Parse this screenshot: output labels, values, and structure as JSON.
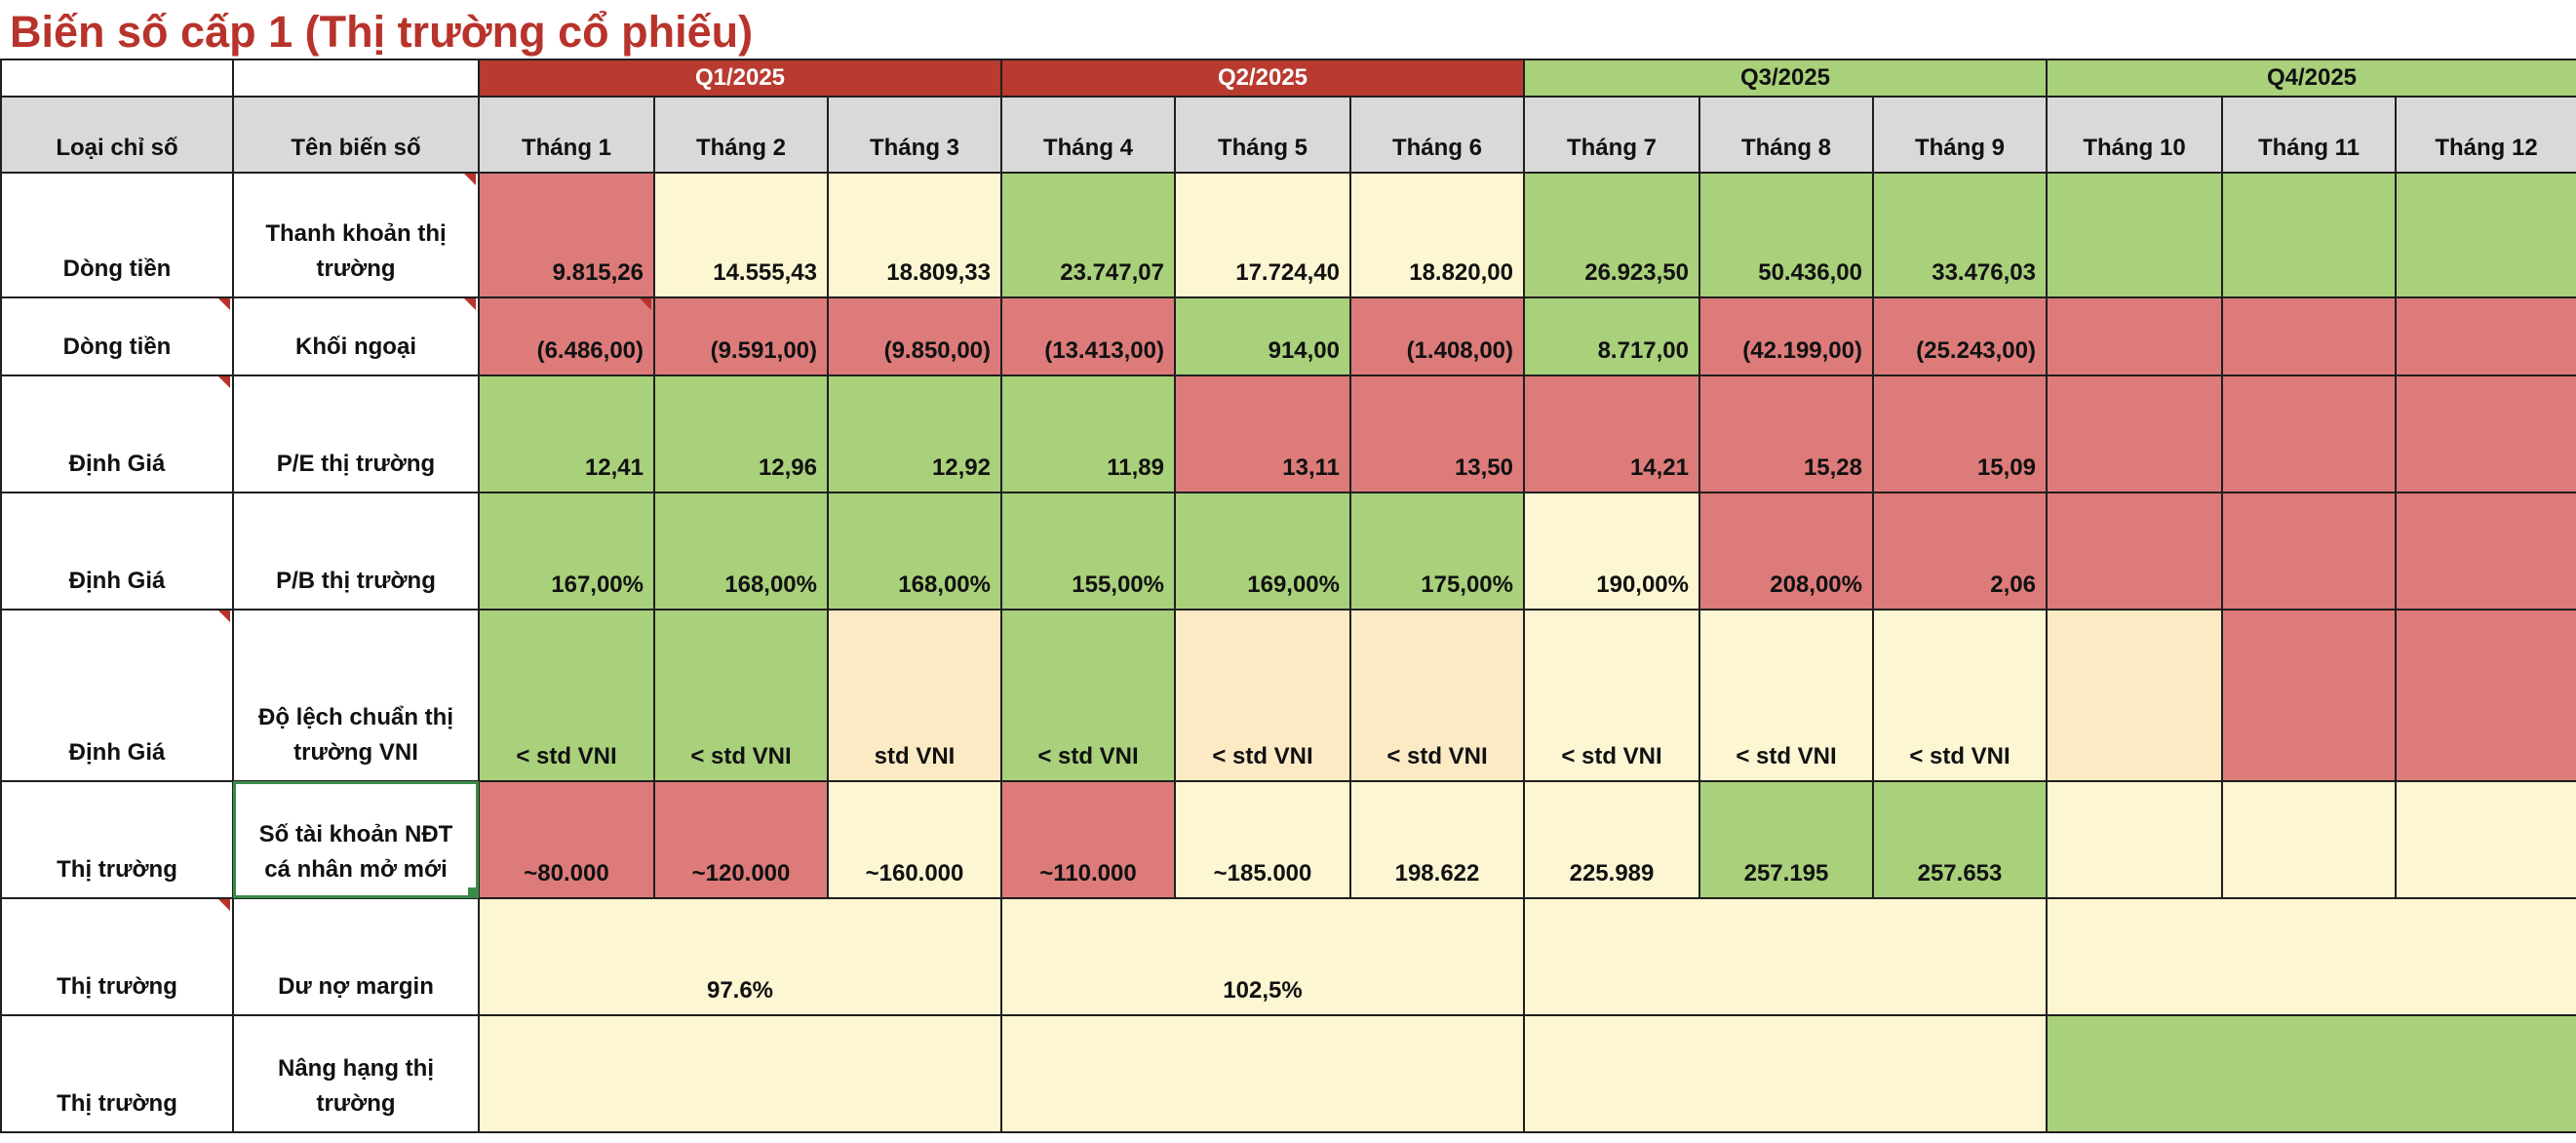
{
  "title": "Biến số cấp 1 (Thị trường cổ phiếu)",
  "quarters": [
    "Q1/2025",
    "Q2/2025",
    "Q3/2025",
    "Q4/2025"
  ],
  "colors": {
    "red": "#dc7b7a",
    "green": "#a9d07a",
    "cream": "#fdf6d3",
    "tan": "#fbeac4",
    "header_red": "#b93a2f",
    "title": "#b8332b"
  },
  "headers": {
    "type": "Loại chỉ số",
    "name": "Tên biến số",
    "months": [
      "Tháng 1",
      "Tháng 2",
      "Tháng 3",
      "Tháng 4",
      "Tháng 5",
      "Tháng 6",
      "Tháng 7",
      "Tháng 8",
      "Tháng 9",
      "Tháng 10",
      "Tháng 11",
      "Tháng 12"
    ]
  },
  "rows": [
    {
      "type": "Dòng tiền",
      "name": "Thanh khoản thị trường",
      "values": [
        "9.815,26",
        "14.555,43",
        "18.809,33",
        "23.747,07",
        "17.724,40",
        "18.820,00",
        "26.923,50",
        "50.436,00",
        "33.476,03",
        "",
        "",
        ""
      ],
      "colors": [
        "red",
        "cream",
        "cream",
        "green",
        "cream",
        "cream",
        "green",
        "green",
        "green",
        "green",
        "green",
        "green"
      ]
    },
    {
      "type": "Dòng tiền",
      "name": "Khối ngoại",
      "values": [
        "(6.486,00)",
        "(9.591,00)",
        "(9.850,00)",
        "(13.413,00)",
        "914,00",
        "(1.408,00)",
        "8.717,00",
        "(42.199,00)",
        "(25.243,00)",
        "",
        "",
        ""
      ],
      "colors": [
        "red",
        "red",
        "red",
        "red",
        "green",
        "red",
        "green",
        "red",
        "red",
        "red",
        "red",
        "red"
      ]
    },
    {
      "type": "Định Giá",
      "name": "P/E thị trường",
      "values": [
        "12,41",
        "12,96",
        "12,92",
        "11,89",
        "13,11",
        "13,50",
        "14,21",
        "15,28",
        "15,09",
        "",
        "",
        ""
      ],
      "colors": [
        "green",
        "green",
        "green",
        "green",
        "red",
        "red",
        "red",
        "red",
        "red",
        "red",
        "red",
        "red"
      ]
    },
    {
      "type": "Định Giá",
      "name": "P/B thị trường",
      "values": [
        "167,00%",
        "168,00%",
        "168,00%",
        "155,00%",
        "169,00%",
        "175,00%",
        "190,00%",
        "208,00%",
        "2,06",
        "",
        "",
        ""
      ],
      "colors": [
        "green",
        "green",
        "green",
        "green",
        "green",
        "green",
        "cream",
        "red",
        "red",
        "red",
        "red",
        "red"
      ]
    },
    {
      "type": "Định Giá",
      "name": "Độ lệch chuẩn thị trường VNI",
      "values": [
        "< std VNI",
        "< std VNI",
        "std VNI",
        "< std VNI",
        "< std VNI",
        "< std VNI",
        "< std VNI",
        "< std VNI",
        "< std VNI",
        "",
        "",
        ""
      ],
      "colors": [
        "green",
        "green",
        "tan",
        "green",
        "tan",
        "tan",
        "cream",
        "cream",
        "cream",
        "tan",
        "red",
        "red"
      ]
    },
    {
      "type": "Thị trường",
      "name": "Số tài khoản NĐT cá nhân mở mới",
      "values": [
        "~80.000",
        "~120.000",
        "~160.000",
        "~110.000",
        "~185.000",
        "198.622",
        "225.989",
        "257.195",
        "257.653",
        "",
        "",
        ""
      ],
      "colors": [
        "red",
        "red",
        "cream",
        "red",
        "cream",
        "cream",
        "cream",
        "green",
        "green",
        "cream",
        "cream",
        "cream"
      ]
    }
  ],
  "margin_row": {
    "type": "Thị trường",
    "name": "Dư nợ margin",
    "q1": "97.6%",
    "q2": "102,5%",
    "q3": "",
    "q4": ""
  },
  "upgrade_row": {
    "type": "Thị trường",
    "name": "Nâng hạng thị trường"
  }
}
